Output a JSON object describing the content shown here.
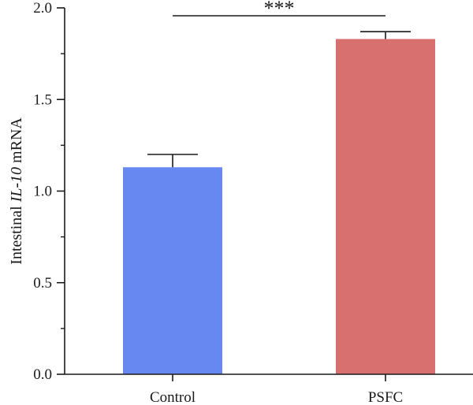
{
  "chart_data": {
    "type": "bar",
    "categories": [
      "Control",
      "PSFC"
    ],
    "values": [
      1.13,
      1.83
    ],
    "errors": [
      0.07,
      0.04
    ],
    "colors": [
      "#6688f0",
      "#d87070"
    ],
    "ylabel": {
      "prefix": "Intestinal ",
      "gene": "IL-10",
      "suffix": " mRNA"
    },
    "ylim": [
      0,
      2.0
    ],
    "yticks": [
      "0.0",
      "0.5",
      "1.0",
      "1.5",
      "2.0"
    ],
    "significance": "***",
    "grid": false
  }
}
